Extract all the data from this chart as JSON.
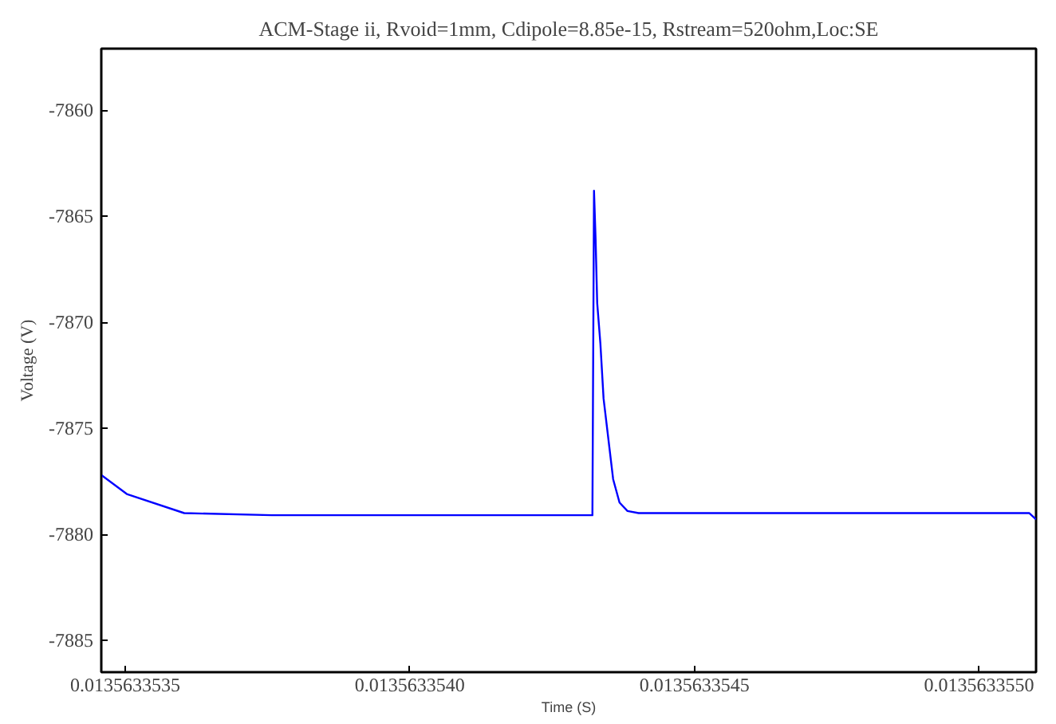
{
  "chart_data": {
    "type": "line",
    "title": "ACM-Stage ii, Rvoid=1mm, Cdipole=8.85e-15, Rstream=520ohm,Loc:SE",
    "xlabel": "Time (S)",
    "ylabel": "Voltage (V)",
    "x": [
      0.013563353458,
      0.0135633535028,
      0.0135633536036,
      0.0135633537577,
      0.0135633543207,
      0.0135633543235,
      0.0135633543263,
      0.0135633543291,
      0.0135633543347,
      0.0135633543403,
      0.0135633543487,
      0.0135633543571,
      0.0135633543683,
      0.0135633543823,
      0.0135633544019,
      0.0135633550882,
      0.0135633551
    ],
    "series": [
      {
        "color": "#0000ff",
        "values": [
          -7877.2,
          -7878.1,
          -7879.0,
          -7879.1,
          -7879.1,
          -7863.8,
          -7866.1,
          -7869.1,
          -7871.0,
          -7873.6,
          -7875.5,
          -7877.4,
          -7878.5,
          -7878.9,
          -7879.0,
          -7879.0,
          -7879.3
        ]
      }
    ],
    "xlim": [
      0.013563353458,
      0.0135633551
    ],
    "ylim": [
      -7886.5,
      -7857.1
    ],
    "xticks": [
      {
        "value": 0.0135633535,
        "label": "0.0135633535"
      },
      {
        "value": 0.013563354,
        "label": "0.0135633540"
      },
      {
        "value": 0.0135633545,
        "label": "0.0135633545"
      },
      {
        "value": 0.013563355,
        "label": "0.0135633550"
      }
    ],
    "yticks": [
      -7860,
      -7865,
      -7870,
      -7875,
      -7880,
      -7885
    ],
    "grid": false,
    "marker": "none",
    "line_style": "solid"
  }
}
